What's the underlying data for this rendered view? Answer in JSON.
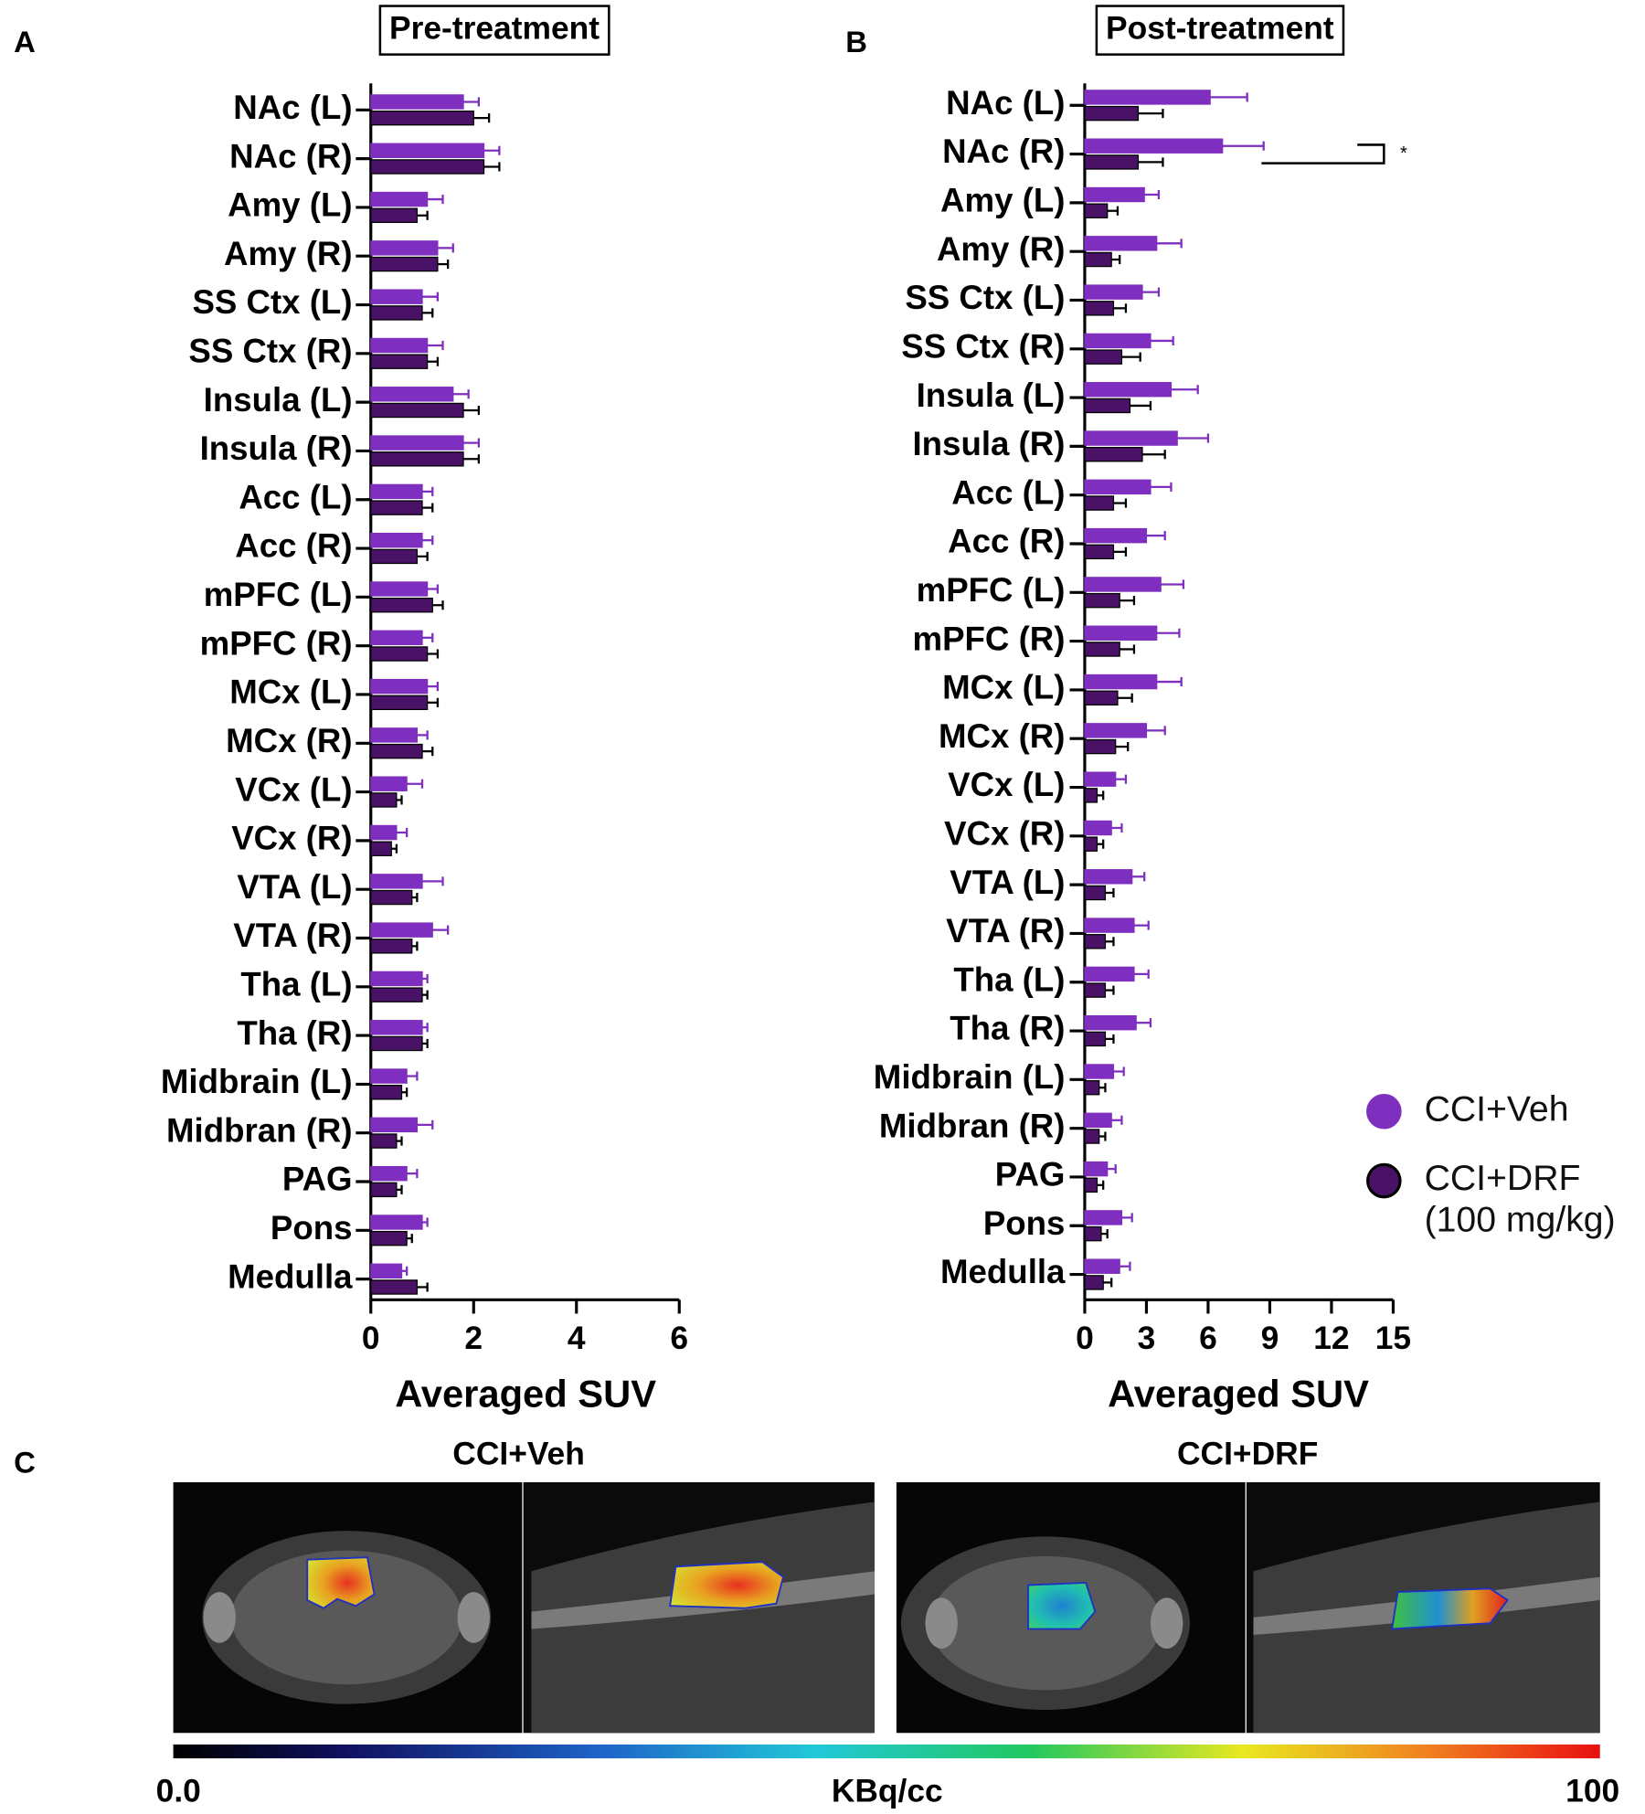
{
  "chart_data": [
    {
      "type": "bar",
      "panel": "A",
      "title": "Pre-treatment",
      "x_label": "Averaged SUV",
      "categories": [
        "NAc (L)",
        "NAc (R)",
        "Amy (L)",
        "Amy (R)",
        "SS Ctx (L)",
        "SS Ctx (R)",
        "Insula (L)",
        "Insula (R)",
        "Acc (L)",
        "Acc (R)",
        "mPFC (L)",
        "mPFC (R)",
        "MCx (L)",
        "MCx (R)",
        "VCx (L)",
        "VCx (R)",
        "VTA (L)",
        "VTA (R)",
        "Tha (L)",
        "Tha (R)",
        "Midbrain (L)",
        "Midbran (R)",
        "PAG",
        "Pons",
        "Medulla"
      ],
      "series": [
        {
          "name": "CCI+Veh",
          "color": "#7f2fbf",
          "values": [
            1.8,
            2.2,
            1.1,
            1.3,
            1.0,
            1.1,
            1.6,
            1.8,
            1.0,
            1.0,
            1.1,
            1.0,
            1.1,
            0.9,
            0.7,
            0.5,
            1.0,
            1.2,
            1.0,
            1.0,
            0.7,
            0.9,
            0.7,
            1.0,
            0.6
          ],
          "errors": [
            0.3,
            0.3,
            0.3,
            0.3,
            0.3,
            0.3,
            0.3,
            0.3,
            0.2,
            0.2,
            0.2,
            0.2,
            0.2,
            0.2,
            0.3,
            0.2,
            0.4,
            0.3,
            0.1,
            0.1,
            0.2,
            0.3,
            0.2,
            0.1,
            0.1
          ]
        },
        {
          "name": "CCI+DRF (100 mg/kg)",
          "color": "#4a1266",
          "values": [
            2.0,
            2.2,
            0.9,
            1.3,
            1.0,
            1.1,
            1.8,
            1.8,
            1.0,
            0.9,
            1.2,
            1.1,
            1.1,
            1.0,
            0.5,
            0.4,
            0.8,
            0.8,
            1.0,
            1.0,
            0.6,
            0.5,
            0.5,
            0.7,
            0.9
          ],
          "errors": [
            0.3,
            0.3,
            0.2,
            0.2,
            0.2,
            0.2,
            0.3,
            0.3,
            0.2,
            0.2,
            0.2,
            0.2,
            0.2,
            0.2,
            0.1,
            0.1,
            0.1,
            0.1,
            0.1,
            0.1,
            0.1,
            0.1,
            0.1,
            0.1,
            0.2
          ]
        }
      ],
      "xlim": [
        0,
        6
      ],
      "xticks": [
        0,
        2,
        4,
        6
      ]
    },
    {
      "type": "bar",
      "panel": "B",
      "title": "Post-treatment",
      "x_label": "Averaged SUV",
      "annotation": "*",
      "categories": [
        "NAc (L)",
        "NAc (R)",
        "Amy (L)",
        "Amy (R)",
        "SS Ctx (L)",
        "SS Ctx (R)",
        "Insula (L)",
        "Insula (R)",
        "Acc (L)",
        "Acc (R)",
        "mPFC (L)",
        "mPFC (R)",
        "MCx (L)",
        "MCx (R)",
        "VCx (L)",
        "VCx (R)",
        "VTA (L)",
        "VTA (R)",
        "Tha (L)",
        "Tha (R)",
        "Midbrain (L)",
        "Midbran (R)",
        "PAG",
        "Pons",
        "Medulla"
      ],
      "series": [
        {
          "name": "CCI+Veh",
          "color": "#7f2fbf",
          "values": [
            6.1,
            6.7,
            2.9,
            3.5,
            2.8,
            3.2,
            4.2,
            4.5,
            3.2,
            3.0,
            3.7,
            3.5,
            3.5,
            3.0,
            1.5,
            1.3,
            2.3,
            2.4,
            2.4,
            2.5,
            1.4,
            1.3,
            1.1,
            1.8,
            1.7
          ],
          "errors": [
            1.8,
            2.0,
            0.7,
            1.2,
            0.8,
            1.1,
            1.3,
            1.5,
            1.0,
            0.9,
            1.1,
            1.1,
            1.2,
            0.9,
            0.5,
            0.5,
            0.6,
            0.7,
            0.7,
            0.7,
            0.5,
            0.5,
            0.4,
            0.5,
            0.5
          ]
        },
        {
          "name": "CCI+DRF (100 mg/kg)",
          "color": "#4a1266",
          "values": [
            2.6,
            2.6,
            1.1,
            1.3,
            1.4,
            1.8,
            2.2,
            2.8,
            1.4,
            1.4,
            1.7,
            1.7,
            1.6,
            1.5,
            0.6,
            0.6,
            1.0,
            1.0,
            1.0,
            1.0,
            0.7,
            0.7,
            0.6,
            0.8,
            0.9
          ],
          "errors": [
            1.2,
            1.2,
            0.5,
            0.4,
            0.6,
            0.9,
            1.0,
            1.1,
            0.6,
            0.6,
            0.7,
            0.7,
            0.7,
            0.6,
            0.3,
            0.3,
            0.4,
            0.4,
            0.4,
            0.4,
            0.3,
            0.3,
            0.3,
            0.3,
            0.4
          ]
        }
      ],
      "xlim": [
        0,
        15
      ],
      "xticks": [
        0,
        3,
        6,
        9,
        12,
        15
      ]
    }
  ],
  "panel_c": {
    "label": "C",
    "images": [
      {
        "title": "CCI+Veh"
      },
      {
        "title": "CCI+DRF"
      }
    ],
    "colorbar": {
      "min_label": "0.0",
      "unit": "KBq/cc",
      "max_label": "100"
    }
  }
}
